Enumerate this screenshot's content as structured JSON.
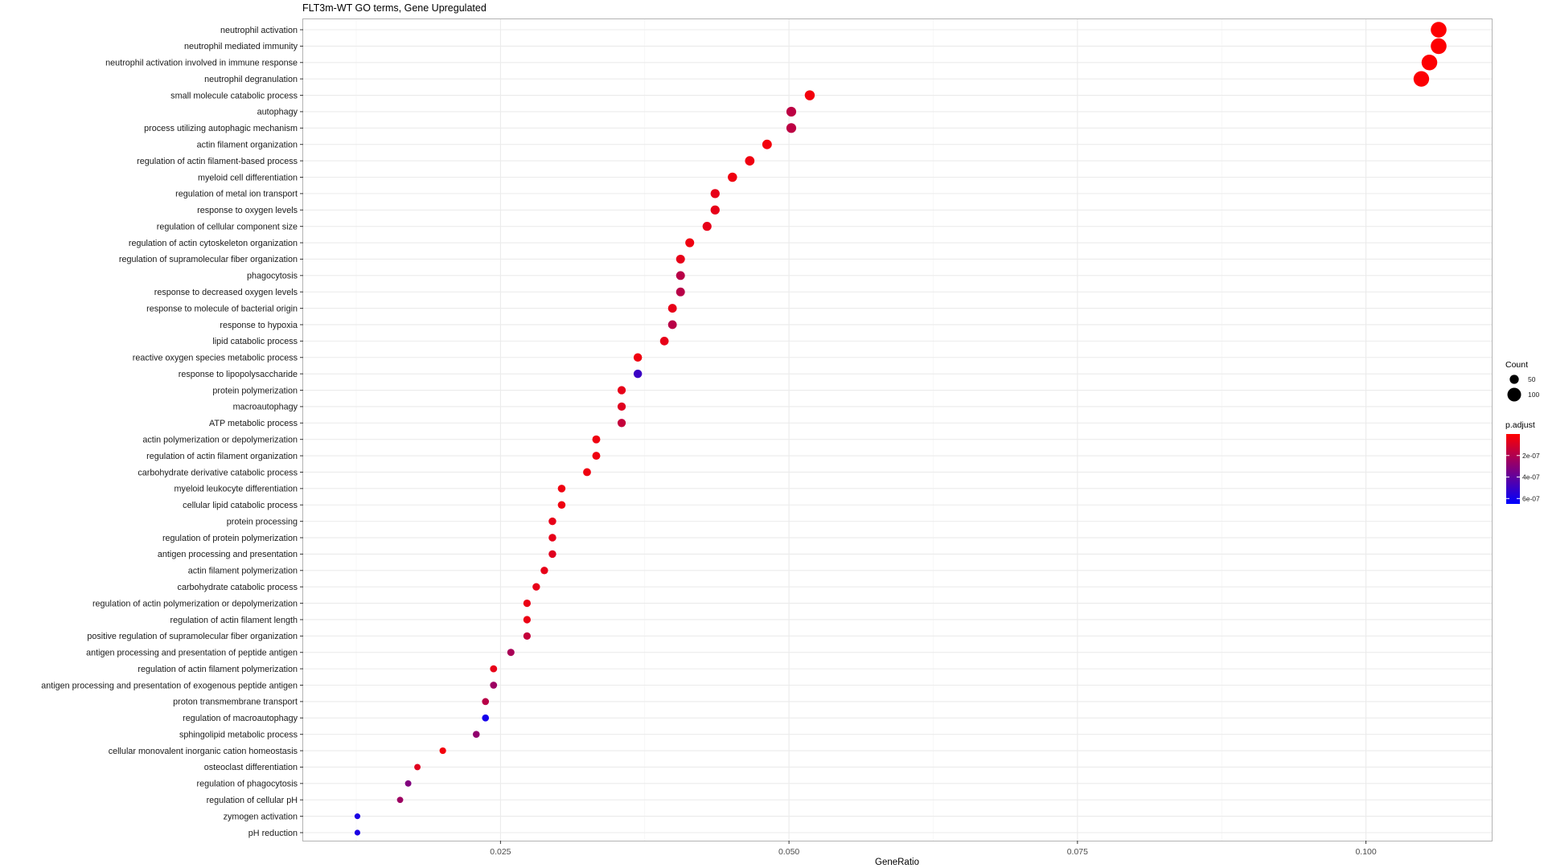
{
  "chart_data": {
    "type": "scatter",
    "title": "FLT3m-WT GO terms, Gene Upregulated",
    "xlabel": "GeneRatio",
    "ylabel": "",
    "xlim": [
      0.0079,
      0.1109
    ],
    "x_ticks": [
      0.025,
      0.05,
      0.075,
      0.1
    ],
    "x_tick_labels": [
      "0.025",
      "0.050",
      "0.075",
      "0.100"
    ],
    "grid": true,
    "legend_position": "right",
    "size_legend": {
      "title": "Count",
      "entries": [
        {
          "label": "50",
          "value": 50
        },
        {
          "label": "100",
          "value": 100
        }
      ]
    },
    "color_legend": {
      "title": "p.adjust",
      "range": [
        0.0,
        6.5e-07
      ],
      "low_color": "#ff0000",
      "high_color": "#0000ff",
      "ticks": [
        2e-07,
        4e-07,
        6e-07
      ],
      "tick_labels": [
        "2e-07",
        "4e-07",
        "6e-07"
      ]
    },
    "points": [
      {
        "term": "neutrophil activation",
        "gene_ratio": 0.1063,
        "count": 123,
        "p_adjust": 5e-09
      },
      {
        "term": "neutrophil mediated immunity",
        "gene_ratio": 0.1063,
        "count": 123,
        "p_adjust": 5e-09
      },
      {
        "term": "neutrophil activation involved in immune response",
        "gene_ratio": 0.1055,
        "count": 122,
        "p_adjust": 5e-09
      },
      {
        "term": "neutrophil degranulation",
        "gene_ratio": 0.1048,
        "count": 121,
        "p_adjust": 8e-09
      },
      {
        "term": "small molecule catabolic process",
        "gene_ratio": 0.0518,
        "count": 60,
        "p_adjust": 3e-08
      },
      {
        "term": "autophagy",
        "gene_ratio": 0.0502,
        "count": 58,
        "p_adjust": 1.7e-07
      },
      {
        "term": "process utilizing autophagic mechanism",
        "gene_ratio": 0.0502,
        "count": 58,
        "p_adjust": 1.7e-07
      },
      {
        "term": "actin filament organization",
        "gene_ratio": 0.0481,
        "count": 55,
        "p_adjust": 3e-08
      },
      {
        "term": "regulation of actin filament-based process",
        "gene_ratio": 0.0466,
        "count": 54,
        "p_adjust": 4e-08
      },
      {
        "term": "myeloid cell differentiation",
        "gene_ratio": 0.0451,
        "count": 52,
        "p_adjust": 4e-08
      },
      {
        "term": "regulation of metal ion transport",
        "gene_ratio": 0.0436,
        "count": 50,
        "p_adjust": 6e-08
      },
      {
        "term": "response to oxygen levels",
        "gene_ratio": 0.0436,
        "count": 50,
        "p_adjust": 6e-08
      },
      {
        "term": "regulation of cellular component size",
        "gene_ratio": 0.0429,
        "count": 49,
        "p_adjust": 6e-08
      },
      {
        "term": "regulation of actin cytoskeleton organization",
        "gene_ratio": 0.0414,
        "count": 48,
        "p_adjust": 4e-08
      },
      {
        "term": "regulation of supramolecular fiber organization",
        "gene_ratio": 0.0406,
        "count": 47,
        "p_adjust": 6e-08
      },
      {
        "term": "phagocytosis",
        "gene_ratio": 0.0406,
        "count": 47,
        "p_adjust": 1.8e-07
      },
      {
        "term": "response to decreased oxygen levels",
        "gene_ratio": 0.0406,
        "count": 47,
        "p_adjust": 1.8e-07
      },
      {
        "term": "response to molecule of bacterial origin",
        "gene_ratio": 0.0399,
        "count": 46,
        "p_adjust": 6e-08
      },
      {
        "term": "response to hypoxia",
        "gene_ratio": 0.0399,
        "count": 46,
        "p_adjust": 1.8e-07
      },
      {
        "term": "lipid catabolic process",
        "gene_ratio": 0.0392,
        "count": 45,
        "p_adjust": 6e-08
      },
      {
        "term": "reactive oxygen species metabolic process",
        "gene_ratio": 0.0369,
        "count": 43,
        "p_adjust": 4e-08
      },
      {
        "term": "response to lipopolysaccharide",
        "gene_ratio": 0.0369,
        "count": 43,
        "p_adjust": 5e-07
      },
      {
        "term": "protein polymerization",
        "gene_ratio": 0.0355,
        "count": 41,
        "p_adjust": 6e-08
      },
      {
        "term": "macroautophagy",
        "gene_ratio": 0.0355,
        "count": 41,
        "p_adjust": 8e-08
      },
      {
        "term": "ATP metabolic process",
        "gene_ratio": 0.0355,
        "count": 41,
        "p_adjust": 1.5e-07
      },
      {
        "term": "actin polymerization or depolymerization",
        "gene_ratio": 0.0333,
        "count": 38,
        "p_adjust": 4e-08
      },
      {
        "term": "regulation of actin filament organization",
        "gene_ratio": 0.0333,
        "count": 38,
        "p_adjust": 4e-08
      },
      {
        "term": "carbohydrate derivative catabolic process",
        "gene_ratio": 0.0325,
        "count": 37,
        "p_adjust": 4e-08
      },
      {
        "term": "myeloid leukocyte differentiation",
        "gene_ratio": 0.0303,
        "count": 35,
        "p_adjust": 4e-08
      },
      {
        "term": "cellular lipid catabolic process",
        "gene_ratio": 0.0303,
        "count": 35,
        "p_adjust": 4e-08
      },
      {
        "term": "protein processing",
        "gene_ratio": 0.0295,
        "count": 34,
        "p_adjust": 6e-08
      },
      {
        "term": "regulation of protein polymerization",
        "gene_ratio": 0.0295,
        "count": 34,
        "p_adjust": 6e-08
      },
      {
        "term": "antigen processing and presentation",
        "gene_ratio": 0.0295,
        "count": 34,
        "p_adjust": 8e-08
      },
      {
        "term": "actin filament polymerization",
        "gene_ratio": 0.0288,
        "count": 33,
        "p_adjust": 6e-08
      },
      {
        "term": "carbohydrate catabolic process",
        "gene_ratio": 0.0281,
        "count": 33,
        "p_adjust": 6e-08
      },
      {
        "term": "regulation of actin polymerization or depolymerization",
        "gene_ratio": 0.0273,
        "count": 32,
        "p_adjust": 5e-08
      },
      {
        "term": "regulation of actin filament length",
        "gene_ratio": 0.0273,
        "count": 32,
        "p_adjust": 5e-08
      },
      {
        "term": "positive regulation of supramolecular fiber organization",
        "gene_ratio": 0.0273,
        "count": 32,
        "p_adjust": 1.5e-07
      },
      {
        "term": "antigen processing and presentation of peptide antigen",
        "gene_ratio": 0.0259,
        "count": 30,
        "p_adjust": 2.2e-07
      },
      {
        "term": "regulation of actin filament polymerization",
        "gene_ratio": 0.0244,
        "count": 28,
        "p_adjust": 6e-08
      },
      {
        "term": "antigen processing and presentation of exogenous peptide antigen",
        "gene_ratio": 0.0244,
        "count": 28,
        "p_adjust": 2.5e-07
      },
      {
        "term": "proton transmembrane transport",
        "gene_ratio": 0.0237,
        "count": 27,
        "p_adjust": 1.8e-07
      },
      {
        "term": "regulation of macroautophagy",
        "gene_ratio": 0.0237,
        "count": 27,
        "p_adjust": 6e-07
      },
      {
        "term": "sphingolipid metabolic process",
        "gene_ratio": 0.0229,
        "count": 26,
        "p_adjust": 2.8e-07
      },
      {
        "term": "cellular monovalent inorganic cation homeostasis",
        "gene_ratio": 0.02,
        "count": 23,
        "p_adjust": 3e-08
      },
      {
        "term": "osteoclast differentiation",
        "gene_ratio": 0.0178,
        "count": 20,
        "p_adjust": 8e-08
      },
      {
        "term": "regulation of phagocytosis",
        "gene_ratio": 0.017,
        "count": 20,
        "p_adjust": 3.2e-07
      },
      {
        "term": "regulation of cellular pH",
        "gene_ratio": 0.0163,
        "count": 19,
        "p_adjust": 2.5e-07
      },
      {
        "term": "zymogen activation",
        "gene_ratio": 0.0126,
        "count": 14,
        "p_adjust": 5.8e-07
      },
      {
        "term": "pH reduction",
        "gene_ratio": 0.0126,
        "count": 14,
        "p_adjust": 5.8e-07
      }
    ]
  }
}
